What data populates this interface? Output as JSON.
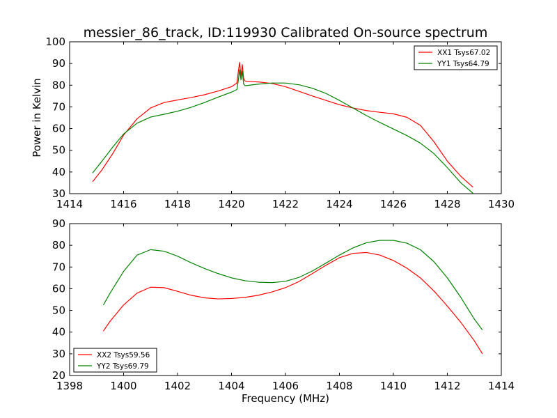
{
  "figure": {
    "title": "messier_86_track, ID:119930 Calibrated On-source spectrum",
    "xlabel": "Frequency (MHz)",
    "ylabel": "Power in Kelvin"
  },
  "chart_data": [
    {
      "type": "line",
      "title": "messier_86_track, ID:119930 Calibrated On-source spectrum",
      "xlabel": "",
      "ylabel": "Power in Kelvin",
      "xlim": [
        1414,
        1430
      ],
      "ylim": [
        30,
        100
      ],
      "xticks": [
        1414,
        1416,
        1418,
        1420,
        1422,
        1424,
        1426,
        1428,
        1430
      ],
      "yticks": [
        30,
        40,
        50,
        60,
        70,
        80,
        90,
        100
      ],
      "legend_position": "top-right",
      "series": [
        {
          "name": "XX1 Tsys67.02",
          "color": "#ff0000",
          "x": [
            1414.85,
            1415.2,
            1415.6,
            1416.0,
            1416.5,
            1417.0,
            1417.5,
            1418.0,
            1418.5,
            1419.0,
            1419.5,
            1420.0,
            1420.2,
            1420.25,
            1420.3,
            1420.35,
            1420.4,
            1420.45,
            1420.5,
            1420.55,
            1420.6,
            1421.0,
            1421.5,
            1422.0,
            1422.5,
            1423.0,
            1423.5,
            1424.0,
            1424.5,
            1425.0,
            1425.5,
            1426.0,
            1426.5,
            1427.0,
            1427.5,
            1428.0,
            1428.5,
            1428.95
          ],
          "y": [
            35.5,
            41,
            48.5,
            57,
            64.5,
            69.5,
            72,
            73.2,
            74.3,
            75.6,
            77.3,
            79.3,
            81,
            86,
            90.5,
            84,
            89.5,
            83,
            82,
            81.8,
            81.8,
            81.5,
            80.8,
            79.3,
            77.2,
            75,
            73,
            71,
            69.5,
            68.3,
            67.5,
            66.8,
            65.2,
            61.5,
            54,
            45,
            38,
            33
          ]
        },
        {
          "name": "YY1 Tsys64.79",
          "color": "#008000",
          "x": [
            1414.85,
            1415.2,
            1415.6,
            1416.0,
            1416.5,
            1417.0,
            1417.5,
            1418.0,
            1418.5,
            1419.0,
            1419.5,
            1420.0,
            1420.2,
            1420.25,
            1420.3,
            1420.35,
            1420.4,
            1420.45,
            1420.5,
            1420.55,
            1420.6,
            1421.0,
            1421.5,
            1422.0,
            1422.5,
            1423.0,
            1423.5,
            1424.0,
            1424.5,
            1425.0,
            1425.5,
            1426.0,
            1426.5,
            1427.0,
            1427.5,
            1428.0,
            1428.5,
            1428.95
          ],
          "y": [
            39.5,
            45,
            51.5,
            57.5,
            62.5,
            65.3,
            66.6,
            68,
            69.8,
            72,
            74.5,
            76.8,
            78,
            82,
            87,
            82.5,
            86.5,
            80.5,
            79.8,
            79.8,
            79.9,
            80.5,
            81,
            81,
            80.2,
            78.6,
            76.2,
            73,
            69.5,
            66,
            62.8,
            59.8,
            56.8,
            53.3,
            48.5,
            42,
            35,
            30.2
          ]
        }
      ]
    },
    {
      "type": "line",
      "title": "",
      "xlabel": "Frequency (MHz)",
      "ylabel": "",
      "xlim": [
        1398,
        1414
      ],
      "ylim": [
        20,
        90
      ],
      "xticks": [
        1398,
        1400,
        1402,
        1404,
        1406,
        1408,
        1410,
        1412,
        1414
      ],
      "yticks": [
        20,
        30,
        40,
        50,
        60,
        70,
        80,
        90
      ],
      "legend_position": "bottom-left",
      "series": [
        {
          "name": "XX2 Tsys59.56",
          "color": "#ff0000",
          "x": [
            1399.25,
            1399.5,
            1400.0,
            1400.5,
            1401.0,
            1401.5,
            1402.0,
            1402.5,
            1403.0,
            1403.5,
            1404.0,
            1404.5,
            1405.0,
            1405.5,
            1406.0,
            1406.5,
            1407.0,
            1407.5,
            1408.0,
            1408.5,
            1409.0,
            1409.5,
            1410.0,
            1410.5,
            1411.0,
            1411.5,
            1412.0,
            1412.5,
            1413.0,
            1413.3
          ],
          "y": [
            40.5,
            45,
            52.5,
            58,
            60.7,
            60.5,
            58.8,
            57,
            55.8,
            55.3,
            55.5,
            56,
            57,
            58.5,
            60.5,
            63.3,
            67,
            70.8,
            74.3,
            76.3,
            76.7,
            75.5,
            73,
            69.5,
            65,
            59,
            52,
            44.5,
            36,
            30
          ]
        },
        {
          "name": "YY2 Tsys69.79",
          "color": "#008000",
          "x": [
            1399.25,
            1399.5,
            1400.0,
            1400.5,
            1401.0,
            1401.5,
            1402.0,
            1402.5,
            1403.0,
            1403.5,
            1404.0,
            1404.5,
            1405.0,
            1405.5,
            1406.0,
            1406.5,
            1407.0,
            1407.5,
            1408.0,
            1408.5,
            1409.0,
            1409.5,
            1410.0,
            1410.5,
            1411.0,
            1411.5,
            1412.0,
            1412.5,
            1413.0,
            1413.3
          ],
          "y": [
            52.5,
            58,
            68,
            75.5,
            78,
            77.3,
            75,
            72,
            69.3,
            67,
            65,
            63.7,
            63,
            62.8,
            63.4,
            65.2,
            68.2,
            71.8,
            75.5,
            78.8,
            81.2,
            82.3,
            82.3,
            81,
            78,
            72.5,
            65,
            56,
            46,
            41
          ]
        }
      ]
    }
  ]
}
